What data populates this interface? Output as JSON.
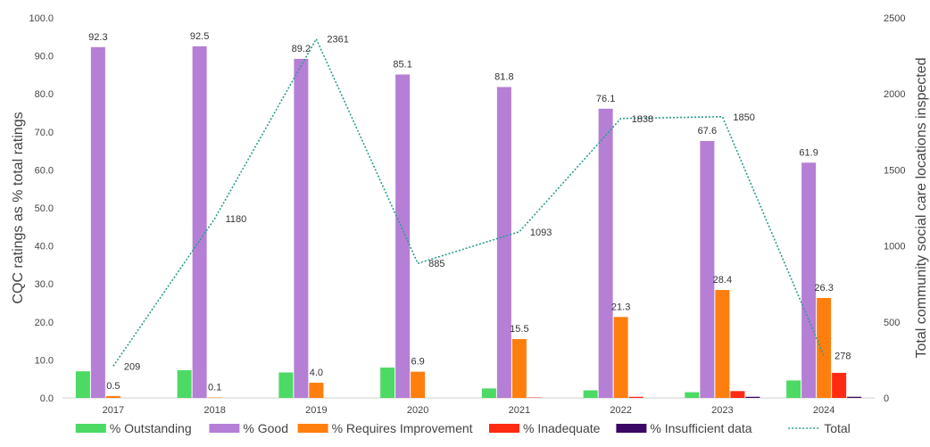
{
  "chart_data": {
    "type": "bar",
    "categories": [
      "2017",
      "2018",
      "2019",
      "2020",
      "2021",
      "2022",
      "2023",
      "2024"
    ],
    "ylabel": "CQC ratings as % total ratings",
    "y2label": "Total community social care locations inspected",
    "ylim": [
      0,
      100
    ],
    "yticks": [
      "0.0",
      "10.0",
      "20.0",
      "30.0",
      "40.0",
      "50.0",
      "60.0",
      "70.0",
      "80.0",
      "90.0",
      "100.0"
    ],
    "y2lim": [
      0,
      2500
    ],
    "y2ticks": [
      "0",
      "500",
      "1000",
      "1500",
      "2000",
      "2500"
    ],
    "grid": false,
    "legend_position": "bottom",
    "series": [
      {
        "name": "% Outstanding",
        "color": "#4cd964",
        "values": [
          7.0,
          7.3,
          6.7,
          8.0,
          2.5,
          2.0,
          1.5,
          4.6
        ]
      },
      {
        "name": "% Good",
        "color": "#b57fd6",
        "values": [
          92.3,
          92.5,
          89.2,
          85.1,
          81.8,
          76.1,
          67.6,
          61.9
        ],
        "labels": [
          "92.3",
          "92.5",
          "89.2",
          "85.1",
          "81.8",
          "76.1",
          "67.6",
          "61.9"
        ]
      },
      {
        "name": "% Requires Improvement",
        "color": "#ff7f0e",
        "values": [
          0.5,
          0.1,
          4.0,
          6.9,
          15.5,
          21.3,
          28.4,
          26.3
        ],
        "labels": [
          "0.5",
          "0.1",
          "4.0",
          "6.9",
          "15.5",
          "21.3",
          "28.4",
          "26.3"
        ]
      },
      {
        "name": "% Inadequate",
        "color": "#ff2a12",
        "values": [
          0.0,
          0.0,
          0.0,
          0.0,
          0.1,
          0.3,
          1.8,
          6.6
        ]
      },
      {
        "name": "% Insufficient data",
        "color": "#3b0764",
        "values": [
          0.0,
          0.0,
          0.0,
          0.0,
          0.0,
          0.0,
          0.3,
          0.3
        ]
      }
    ],
    "line": {
      "name": "Total",
      "color": "#2a9d8f",
      "values": [
        209,
        1180,
        2361,
        885,
        1093,
        1838,
        1850,
        278
      ],
      "labels": [
        "209",
        "1180",
        "2361",
        "885",
        "1093",
        "1838",
        "1850",
        "278"
      ]
    }
  }
}
